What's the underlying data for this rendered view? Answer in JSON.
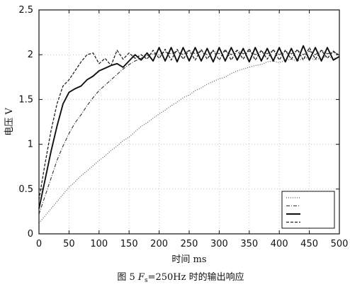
{
  "chart_data": {
    "type": "line",
    "title": "",
    "xlabel": "时间 ms",
    "ylabel": "电压 V",
    "caption": {
      "prefix": "图 5  ",
      "f_symbol": "F",
      "f_sub": "s",
      "suffix": "=250Hz 时的输出响应"
    },
    "xlim": [
      0,
      500
    ],
    "ylim": [
      0,
      2.5
    ],
    "xticks": [
      0,
      50,
      100,
      150,
      200,
      250,
      300,
      350,
      400,
      450,
      500
    ],
    "yticks": [
      0,
      0.5,
      1,
      1.5,
      2,
      2.5
    ],
    "xtick_labels": [
      "0",
      "50",
      "100",
      "150",
      "200",
      "250",
      "300",
      "350",
      "400",
      "450",
      "500"
    ],
    "ytick_labels": [
      "0",
      "0.5",
      "1",
      "1.5",
      "2",
      "2.5"
    ],
    "grid": true,
    "legend": "bottom-right",
    "series": [
      {
        "style": "dotted",
        "color": "#555555",
        "x": [
          0,
          10,
          20,
          30,
          40,
          50,
          60,
          70,
          80,
          90,
          100,
          110,
          120,
          130,
          140,
          150,
          160,
          170,
          180,
          190,
          200,
          210,
          220,
          230,
          240,
          250,
          260,
          270,
          280,
          290,
          300,
          310,
          320,
          330,
          340,
          350,
          360,
          370,
          380,
          390,
          400,
          410,
          420,
          430,
          440,
          450,
          460,
          470,
          480,
          490,
          500
        ],
        "y": [
          0.12,
          0.2,
          0.28,
          0.36,
          0.44,
          0.52,
          0.58,
          0.65,
          0.7,
          0.76,
          0.82,
          0.87,
          0.93,
          0.98,
          1.04,
          1.08,
          1.14,
          1.2,
          1.24,
          1.29,
          1.34,
          1.38,
          1.43,
          1.47,
          1.52,
          1.55,
          1.6,
          1.63,
          1.67,
          1.7,
          1.73,
          1.75,
          1.79,
          1.82,
          1.84,
          1.86,
          1.88,
          1.89,
          1.92,
          1.93,
          1.91,
          1.94,
          1.95,
          1.93,
          1.96,
          1.97,
          1.94,
          1.97,
          1.98,
          1.96,
          1.97
        ]
      },
      {
        "style": "dashdot",
        "color": "#333333",
        "x": [
          0,
          10,
          20,
          30,
          40,
          50,
          60,
          70,
          80,
          90,
          100,
          110,
          120,
          130,
          140,
          150,
          160,
          170,
          180,
          190,
          200,
          210,
          220,
          230,
          240,
          250,
          260,
          270,
          280,
          290,
          300,
          310,
          320,
          330,
          340,
          350,
          360,
          370,
          380,
          390,
          400,
          410,
          420,
          430,
          440,
          450,
          460,
          470,
          480,
          490,
          500
        ],
        "y": [
          0.22,
          0.42,
          0.62,
          0.82,
          0.98,
          1.12,
          1.24,
          1.33,
          1.43,
          1.52,
          1.6,
          1.66,
          1.72,
          1.78,
          1.84,
          1.89,
          1.93,
          1.96,
          1.99,
          2.01,
          2.0,
          2.03,
          2.01,
          2.04,
          2.0,
          2.05,
          2.01,
          2.04,
          2.0,
          2.04,
          2.01,
          2.04,
          2.0,
          2.05,
          2.01,
          2.04,
          2.0,
          2.04,
          2.01,
          2.05,
          2.0,
          2.04,
          2.01,
          2.05,
          2.0,
          2.04,
          2.0,
          2.05,
          2.01,
          2.03,
          2.0
        ]
      },
      {
        "style": "solid-thick",
        "color": "#111111",
        "x": [
          0,
          10,
          20,
          30,
          40,
          50,
          60,
          70,
          80,
          90,
          100,
          110,
          120,
          130,
          140,
          150,
          160,
          170,
          180,
          190,
          200,
          210,
          220,
          230,
          240,
          250,
          260,
          270,
          280,
          290,
          300,
          310,
          320,
          330,
          340,
          350,
          360,
          370,
          380,
          390,
          400,
          410,
          420,
          430,
          440,
          450,
          460,
          470,
          480,
          490,
          500
        ],
        "y": [
          0.28,
          0.6,
          0.92,
          1.2,
          1.45,
          1.58,
          1.62,
          1.65,
          1.72,
          1.76,
          1.82,
          1.85,
          1.88,
          1.9,
          1.86,
          1.93,
          2.0,
          1.94,
          2.02,
          1.93,
          2.08,
          1.93,
          2.08,
          1.92,
          2.08,
          1.93,
          2.08,
          1.93,
          2.07,
          1.92,
          2.08,
          1.93,
          2.08,
          1.94,
          2.07,
          1.92,
          2.08,
          1.93,
          2.07,
          1.93,
          2.08,
          1.92,
          2.07,
          1.93,
          2.1,
          1.94,
          2.08,
          1.93,
          2.08,
          1.94,
          1.98
        ]
      },
      {
        "style": "dashed",
        "color": "#222222",
        "x": [
          0,
          10,
          20,
          30,
          40,
          50,
          60,
          70,
          80,
          90,
          100,
          110,
          120,
          130,
          140,
          150,
          160,
          170,
          180,
          190,
          200,
          210,
          220,
          230,
          240,
          250,
          260,
          270,
          280,
          290,
          300,
          310,
          320,
          330,
          340,
          350,
          360,
          370,
          380,
          390,
          400,
          410,
          420,
          430,
          440,
          450,
          460,
          470,
          480,
          490,
          500
        ],
        "y": [
          0.38,
          0.78,
          1.15,
          1.45,
          1.65,
          1.72,
          1.82,
          1.92,
          2.0,
          2.02,
          1.9,
          1.96,
          1.88,
          2.05,
          1.95,
          2.02,
          1.96,
          2.0,
          1.95,
          2.05,
          1.96,
          2.06,
          1.94,
          2.06,
          1.95,
          2.05,
          1.94,
          2.06,
          1.95,
          2.05,
          1.94,
          2.06,
          1.94,
          2.05,
          1.95,
          2.07,
          1.94,
          2.05,
          1.95,
          2.06,
          1.94,
          2.05,
          1.95,
          2.06,
          1.94,
          2.08,
          1.95,
          2.05,
          1.96,
          2.04,
          1.99
        ]
      }
    ]
  }
}
